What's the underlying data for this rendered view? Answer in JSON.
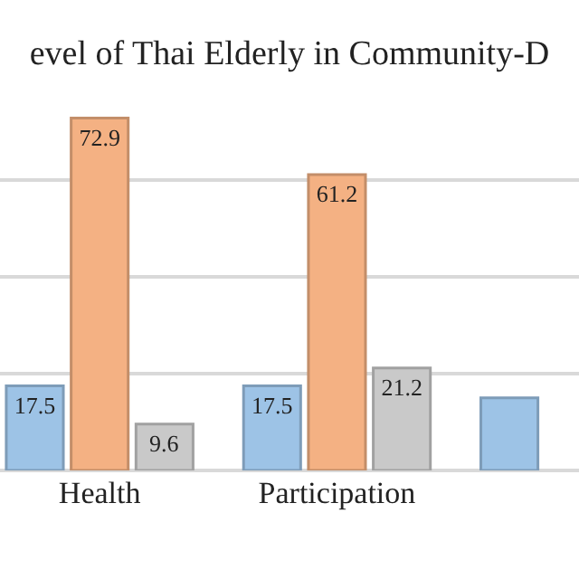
{
  "chart_data": {
    "type": "bar",
    "title": "evel of Thai Elderly in Community-D",
    "categories": [
      "Health",
      "Participation",
      null
    ],
    "series": [
      {
        "color": "#9dc3e6",
        "values": [
          17.5,
          17.5,
          15
        ],
        "value_labels": [
          "17.5",
          "17.5",
          null
        ]
      },
      {
        "color": "#f4b183",
        "values": [
          72.9,
          61.2,
          null
        ],
        "value_labels": [
          "72.9",
          "61.2",
          null
        ]
      },
      {
        "color": "#c9c9c9",
        "values": [
          9.6,
          21.2,
          null
        ],
        "value_labels": [
          "9.6",
          "21.2",
          null
        ]
      }
    ],
    "grid": "y",
    "tick_labels": "x",
    "legend": false
  }
}
